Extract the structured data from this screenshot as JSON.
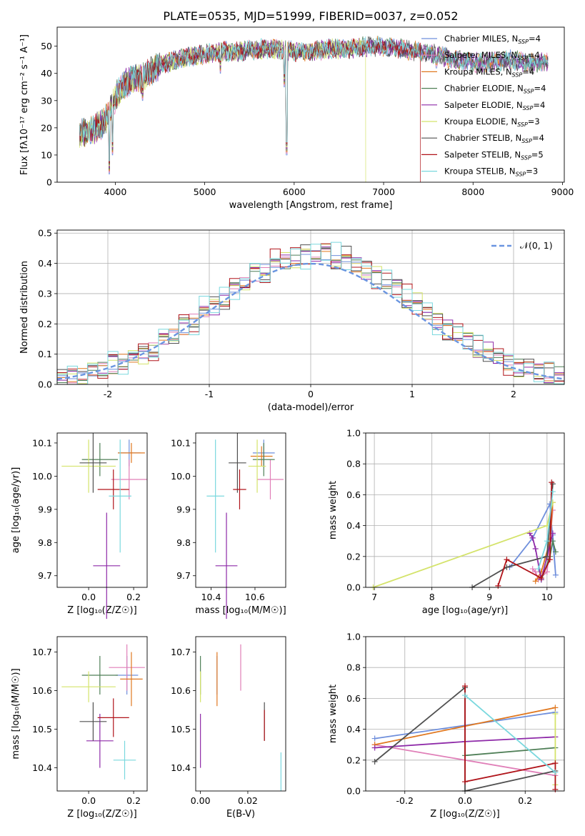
{
  "figure": {
    "title": "PLATE=0535, MJD=51999, FIBERID=0037, z=0.052"
  },
  "colors": {
    "Chabrier MILES": "#6f8fdc",
    "Salpeter MILES": "#e07fb8",
    "Kroupa MILES": "#e07820",
    "Chabrier ELODIE": "#4f7f57",
    "Salpeter ELODIE": "#8e2aa8",
    "Kroupa ELODIE": "#d4e36a",
    "Chabrier STELIB": "#505050",
    "Salpeter STELIB": "#b0141a",
    "Kroupa STELIB": "#7ad8de",
    "gaussian": "#6a95e0"
  },
  "chart_data": [
    {
      "type": "line",
      "id": "spectrum",
      "title": "PLATE=0535, MJD=51999, FIBERID=0037, z=0.052",
      "xlabel": "wavelength [Angstrom, rest frame]",
      "ylabel": "Flux [fλ10⁻¹⁷ erg cm⁻² s⁻¹ A⁻¹]",
      "xlim": [
        3350,
        9020
      ],
      "ylim": [
        0,
        57
      ],
      "xticks": [
        4000,
        5000,
        6000,
        7000,
        8000,
        9000
      ],
      "yticks": [
        0,
        10,
        20,
        30,
        40,
        50
      ],
      "grid": false,
      "legend_position": "right",
      "legend": [
        {
          "name": "Chabrier MILES",
          "nssp": "4"
        },
        {
          "name": "Salpeter MILES",
          "nssp": "4"
        },
        {
          "name": "Kroupa MILES",
          "nssp": "4"
        },
        {
          "name": "Chabrier ELODIE",
          "nssp": "4"
        },
        {
          "name": "Salpeter ELODIE",
          "nssp": "4"
        },
        {
          "name": "Kroupa ELODIE",
          "nssp": "3"
        },
        {
          "name": "Chabrier STELIB",
          "nssp": "4"
        },
        {
          "name": "Salpeter STELIB",
          "nssp": "5"
        },
        {
          "name": "Kroupa STELIB",
          "nssp": "3"
        }
      ],
      "continuum": {
        "x": [
          3600,
          3700,
          3800,
          3900,
          3950,
          4000,
          4100,
          4200,
          4300,
          4400,
          4500,
          4600,
          4800,
          5000,
          5200,
          5400,
          5600,
          5800,
          6000,
          6200,
          6400,
          6600,
          6800,
          7000,
          7200,
          7400,
          7600,
          7800,
          8000,
          8200,
          8400,
          8600,
          8800
        ],
        "y": [
          18,
          19,
          20,
          23,
          27,
          31,
          36,
          38,
          38,
          41,
          43,
          44,
          46,
          47,
          48,
          48,
          49,
          49,
          48,
          48,
          49,
          49,
          50,
          50,
          49,
          48,
          47,
          45,
          44,
          44,
          45,
          44,
          44
        ]
      },
      "features": [
        {
          "x": 3934,
          "y": 3
        },
        {
          "x": 3969,
          "y": 10
        },
        {
          "x": 4305,
          "y": 30
        },
        {
          "x": 5175,
          "y": 40
        },
        {
          "x": 5890,
          "y": 35
        },
        {
          "x": 5915,
          "y": 10
        },
        {
          "x": 6563,
          "y": 55
        },
        {
          "x": 7590,
          "y": 42
        }
      ],
      "ends": {
        "Kroupa ELODIE": {
          "min": 3900,
          "max": 6800
        },
        "Salpeter STELIB": {
          "min": 3600,
          "max": 7410
        }
      }
    },
    {
      "type": "bar",
      "id": "residuals",
      "xlabel": "(data-model)/error",
      "ylabel": "Normed distribution",
      "xlim": [
        -2.5,
        2.5
      ],
      "ylim": [
        0,
        0.51
      ],
      "xticks": [
        -2,
        -1,
        0,
        1,
        2
      ],
      "yticks": [
        0.0,
        0.1,
        0.2,
        0.3,
        0.4,
        0.5
      ],
      "grid": true,
      "legend_position": "top-right",
      "legend_label": "𝒩(0, 1)",
      "bin_width": 0.1,
      "x_start": -2.5,
      "noise": [
        0.02,
        -0.01,
        0.015,
        -0.02,
        0.03,
        -0.015,
        0.01,
        0.025,
        -0.03,
        0.02,
        -0.01,
        0.035,
        -0.025,
        0.015,
        0.005,
        -0.02,
        0.03,
        -0.01,
        0.02,
        -0.03,
        0.04,
        -0.015,
        0.025,
        -0.02,
        0.01,
        0.03,
        -0.025,
        0.015,
        -0.005,
        0.02,
        -0.03,
        0.025,
        -0.01,
        0.035,
        -0.02,
        0.015,
        0.01,
        -0.025,
        0.03,
        -0.015,
        0.02,
        -0.01,
        0.025,
        -0.03,
        0.01,
        0.02,
        -0.015,
        0.03,
        -0.01,
        0.015
      ]
    },
    {
      "type": "scatter",
      "id": "age-vs-Z",
      "xlabel": "Z [log₁₀(Z/Z☉)]",
      "ylabel": "age  [log₁₀(age/yr)]",
      "xlim": [
        -0.14,
        0.26
      ],
      "ylim": [
        9.665,
        10.13
      ],
      "xticks": [
        0.0,
        0.2
      ],
      "yticks": [
        9.7,
        9.8,
        9.9,
        10.0,
        10.1
      ],
      "points": [
        {
          "s": "Chabrier MILES",
          "x": 0.18,
          "y": 10.07,
          "xe": 0.05,
          "ye": 0.04
        },
        {
          "s": "Salpeter MILES",
          "x": 0.18,
          "y": 9.99,
          "xe": 0.08,
          "ye": 0.06
        },
        {
          "s": "Kroupa MILES",
          "x": 0.19,
          "y": 10.07,
          "xe": 0.06,
          "ye": 0.03
        },
        {
          "s": "Chabrier ELODIE",
          "x": 0.05,
          "y": 10.05,
          "xe": 0.08,
          "ye": 0.05
        },
        {
          "s": "Salpeter ELODIE",
          "x": 0.08,
          "y": 9.73,
          "xe": 0.06,
          "ye": 0.16
        },
        {
          "s": "Kroupa ELODIE",
          "x": 0.0,
          "y": 10.03,
          "xe": 0.12,
          "ye": 0.08
        },
        {
          "s": "Chabrier STELIB",
          "x": 0.02,
          "y": 10.04,
          "xe": 0.06,
          "ye": 0.09
        },
        {
          "s": "Salpeter STELIB",
          "x": 0.11,
          "y": 9.96,
          "xe": 0.07,
          "ye": 0.06
        },
        {
          "s": "Kroupa STELIB",
          "x": 0.14,
          "y": 9.94,
          "xe": 0.05,
          "ye": 0.17
        }
      ]
    },
    {
      "type": "scatter",
      "id": "age-vs-mass",
      "xlabel": "mass [log₁₀(M/M☉)]",
      "xlim": [
        10.33,
        10.74
      ],
      "ylim": [
        9.665,
        10.13
      ],
      "xticks": [
        10.4,
        10.6
      ],
      "yticks": [
        9.7,
        9.8,
        9.9,
        10.0,
        10.1
      ],
      "points": [
        {
          "s": "Chabrier MILES",
          "x": 10.64,
          "y": 10.07,
          "xe": 0.05,
          "ye": 0.04
        },
        {
          "s": "Salpeter MILES",
          "x": 10.67,
          "y": 9.99,
          "xe": 0.06,
          "ye": 0.06
        },
        {
          "s": "Kroupa MILES",
          "x": 10.63,
          "y": 10.06,
          "xe": 0.05,
          "ye": 0.03
        },
        {
          "s": "Chabrier ELODIE",
          "x": 10.64,
          "y": 10.05,
          "xe": 0.05,
          "ye": 0.05
        },
        {
          "s": "Salpeter ELODIE",
          "x": 10.47,
          "y": 9.73,
          "xe": 0.05,
          "ye": 0.16
        },
        {
          "s": "Kroupa ELODIE",
          "x": 10.61,
          "y": 10.03,
          "xe": 0.04,
          "ye": 0.08
        },
        {
          "s": "Chabrier STELIB",
          "x": 10.52,
          "y": 10.04,
          "xe": 0.04,
          "ye": 0.09
        },
        {
          "s": "Salpeter STELIB",
          "x": 10.53,
          "y": 9.96,
          "xe": 0.03,
          "ye": 0.06
        },
        {
          "s": "Kroupa STELIB",
          "x": 10.42,
          "y": 9.94,
          "xe": 0.04,
          "ye": 0.17
        }
      ]
    },
    {
      "type": "line",
      "id": "massweight-vs-age",
      "xlabel": "age  [log₁₀(age/yr)]",
      "ylabel": "mass weight",
      "xlim": [
        6.85,
        10.3
      ],
      "ylim": [
        0,
        1.0
      ],
      "xticks": [
        7,
        8,
        9,
        10
      ],
      "yticks": [
        0.0,
        0.2,
        0.4,
        0.6,
        0.8,
        1.0
      ],
      "grid": true,
      "series": [
        {
          "s": "Chabrier MILES",
          "x": [
            9.35,
            9.75,
            10.05,
            10.15,
            10.1
          ],
          "y": [
            0.13,
            0.32,
            0.54,
            0.08,
            0.34
          ]
        },
        {
          "s": "Salpeter MILES",
          "x": [
            9.75,
            9.8,
            9.85,
            10.0,
            10.1
          ],
          "y": [
            0.12,
            0.1,
            0.05,
            0.1,
            0.5
          ]
        },
        {
          "s": "Kroupa MILES",
          "x": [
            9.8,
            9.9,
            10.05,
            10.1
          ],
          "y": [
            0.04,
            0.1,
            0.3,
            0.55
          ]
        },
        {
          "s": "Chabrier ELODIE",
          "x": [
            9.9,
            10.05,
            10.1,
            10.15
          ],
          "y": [
            0.05,
            0.2,
            0.3,
            0.23
          ]
        },
        {
          "s": "Salpeter ELODIE",
          "x": [
            9.7,
            9.75,
            9.8,
            9.9,
            10.1
          ],
          "y": [
            0.35,
            0.32,
            0.25,
            0.05,
            0.35
          ]
        },
        {
          "s": "Kroupa ELODIE",
          "x": [
            6.98,
            10.0,
            10.1
          ],
          "y": [
            0.0,
            0.4,
            0.55
          ]
        },
        {
          "s": "Chabrier STELIB",
          "x": [
            8.7,
            9.3,
            10.0,
            10.1
          ],
          "y": [
            0.0,
            0.13,
            0.2,
            0.67
          ]
        },
        {
          "s": "Salpeter STELIB",
          "x": [
            9.15,
            9.3,
            9.9,
            10.05,
            10.08
          ],
          "y": [
            0.01,
            0.18,
            0.06,
            0.18,
            0.68
          ]
        },
        {
          "s": "Kroupa STELIB",
          "x": [
            9.85,
            10.0,
            10.1
          ],
          "y": [
            0.12,
            0.3,
            0.62
          ]
        }
      ]
    },
    {
      "type": "scatter",
      "id": "mass-vs-Z",
      "xlabel": "Z [log₁₀(Z/Z☉)]",
      "ylabel": "mass [log₁₀(M/M☉)]",
      "xlim": [
        -0.14,
        0.26
      ],
      "ylim": [
        10.34,
        10.74
      ],
      "xticks": [
        0.0,
        0.2
      ],
      "yticks": [
        10.4,
        10.5,
        10.6,
        10.7
      ],
      "points": [
        {
          "s": "Chabrier MILES",
          "x": 0.17,
          "y": 10.64,
          "xe": 0.05,
          "ye": 0.05
        },
        {
          "s": "Salpeter MILES",
          "x": 0.17,
          "y": 10.66,
          "xe": 0.08,
          "ye": 0.06
        },
        {
          "s": "Kroupa MILES",
          "x": 0.19,
          "y": 10.63,
          "xe": 0.05,
          "ye": 0.07
        },
        {
          "s": "Chabrier ELODIE",
          "x": 0.05,
          "y": 10.64,
          "xe": 0.08,
          "ye": 0.05
        },
        {
          "s": "Salpeter ELODIE",
          "x": 0.05,
          "y": 10.47,
          "xe": 0.06,
          "ye": 0.07
        },
        {
          "s": "Kroupa ELODIE",
          "x": 0.0,
          "y": 10.61,
          "xe": 0.12,
          "ye": 0.04
        },
        {
          "s": "Chabrier STELIB",
          "x": 0.02,
          "y": 10.52,
          "xe": 0.06,
          "ye": 0.05
        },
        {
          "s": "Salpeter STELIB",
          "x": 0.11,
          "y": 10.53,
          "xe": 0.07,
          "ye": 0.05
        },
        {
          "s": "Kroupa STELIB",
          "x": 0.16,
          "y": 10.42,
          "xe": 0.05,
          "ye": 0.05
        }
      ]
    },
    {
      "type": "scatter",
      "id": "mass-vs-ebv",
      "xlabel": "E(B-V)",
      "xlim": [
        -0.002,
        0.036
      ],
      "ylim": [
        10.34,
        10.74
      ],
      "xticks": [
        0.0,
        0.02
      ],
      "yticks": [
        10.4,
        10.5,
        10.6,
        10.7
      ],
      "points": [
        {
          "s": "Chabrier MILES",
          "x": 0.007,
          "y": 10.64,
          "xe": 0,
          "ye": 0.05
        },
        {
          "s": "Salpeter MILES",
          "x": 0.017,
          "y": 10.66,
          "xe": 0,
          "ye": 0.06
        },
        {
          "s": "Kroupa MILES",
          "x": 0.007,
          "y": 10.63,
          "xe": 0,
          "ye": 0.07
        },
        {
          "s": "Chabrier ELODIE",
          "x": 0.0,
          "y": 10.64,
          "xe": 0,
          "ye": 0.05
        },
        {
          "s": "Salpeter ELODIE",
          "x": 0.0,
          "y": 10.47,
          "xe": 0,
          "ye": 0.07
        },
        {
          "s": "Kroupa ELODIE",
          "x": 0.0,
          "y": 10.61,
          "xe": 0,
          "ye": 0.04
        },
        {
          "s": "Chabrier STELIB",
          "x": 0.027,
          "y": 10.52,
          "xe": 0,
          "ye": 0.05
        },
        {
          "s": "Salpeter STELIB",
          "x": 0.027,
          "y": 10.51,
          "xe": 0,
          "ye": 0.04
        },
        {
          "s": "Kroupa STELIB",
          "x": 0.034,
          "y": 10.39,
          "xe": 0,
          "ye": 0.05
        }
      ]
    },
    {
      "type": "line",
      "id": "massweight-vs-Z",
      "xlabel": "Z [log₁₀(Z/Z☉)]",
      "ylabel": "mass weight",
      "xlim": [
        -0.33,
        0.33
      ],
      "ylim": [
        0,
        1.0
      ],
      "xticks": [
        -0.2,
        0.0,
        0.2
      ],
      "yticks": [
        0.0,
        0.2,
        0.4,
        0.6,
        0.8,
        1.0
      ],
      "grid": true,
      "series": [
        {
          "s": "Chabrier MILES",
          "x": [
            -0.3,
            0.3
          ],
          "y": [
            0.34,
            0.51
          ]
        },
        {
          "s": "Salpeter MILES",
          "x": [
            -0.3,
            0.3
          ],
          "y": [
            0.3,
            0.1
          ]
        },
        {
          "s": "Kroupa MILES",
          "x": [
            -0.3,
            0.3
          ],
          "y": [
            0.3,
            0.54
          ]
        },
        {
          "s": "Chabrier ELODIE",
          "x": [
            0.0,
            0.3
          ],
          "y": [
            0.23,
            0.28
          ]
        },
        {
          "s": "Salpeter ELODIE",
          "x": [
            -0.3,
            0.0,
            0.3
          ],
          "y": [
            0.28,
            0.32,
            0.35
          ]
        },
        {
          "s": "Kroupa ELODIE",
          "x": [
            0.3,
            0.3
          ],
          "y": [
            0.04,
            0.5
          ]
        },
        {
          "s": "Chabrier STELIB",
          "x": [
            -0.3,
            0.0,
            0.0,
            0.3
          ],
          "y": [
            0.19,
            0.67,
            0.0,
            0.13
          ]
        },
        {
          "s": "Salpeter STELIB",
          "x": [
            0.0,
            0.0,
            0.3,
            0.3
          ],
          "y": [
            0.68,
            0.06,
            0.18,
            0.01
          ]
        },
        {
          "s": "Kroupa STELIB",
          "x": [
            0.0,
            0.3
          ],
          "y": [
            0.62,
            0.12
          ]
        }
      ]
    }
  ]
}
